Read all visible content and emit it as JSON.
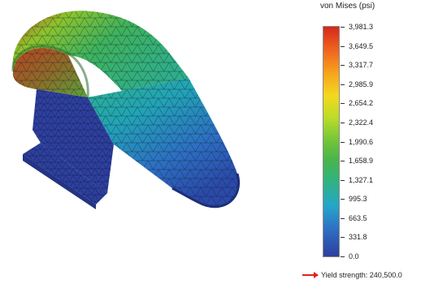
{
  "legend": {
    "title": "von Mises (psi)",
    "ticks": [
      "3,981.3",
      "3,649.5",
      "3,317.7",
      "2,985.9",
      "2,654.2",
      "2,322.4",
      "1,990.6",
      "1,658.9",
      "1,327.1",
      "995.3",
      "663.5",
      "331.8",
      "0.0"
    ],
    "yield_label": "Yield strength: 240,500.0"
  },
  "colors": {
    "high": "#d6281b",
    "mid": "#6fc43a",
    "low": "#2d3f9e",
    "yield_arrow": "#e02020"
  }
}
